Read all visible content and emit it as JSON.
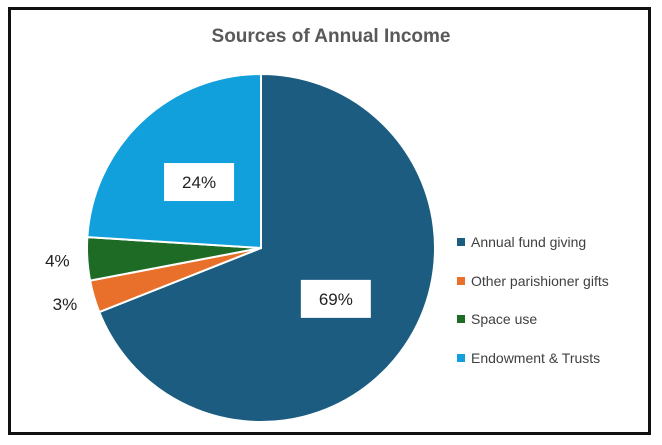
{
  "chart_data": {
    "type": "pie",
    "title": "Sources of Annual Income",
    "categories": [
      "Annual fund giving",
      "Other parishioner gifts",
      "Space use",
      "Endowment & Trusts"
    ],
    "values": [
      69,
      3,
      4,
      24
    ],
    "labels": [
      "69%",
      "3%",
      "4%",
      "24%"
    ],
    "colors": [
      "#1b5c80",
      "#e8702a",
      "#1e6b26",
      "#12a0dc"
    ],
    "legend_position": "right"
  }
}
